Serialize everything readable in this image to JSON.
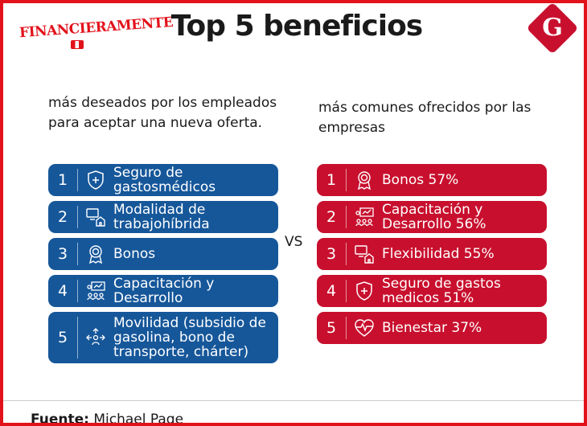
{
  "header": {
    "title": "Top 5 beneficios",
    "brand_left": "FINANCIERAMENTE",
    "brand_right": "G"
  },
  "left": {
    "subtitle": "más deseados por los empleados para aceptar una nueva oferta.",
    "items": [
      {
        "num": "1",
        "label": "Seguro de gastosmédicos",
        "icon": "shield-plus-icon"
      },
      {
        "num": "2",
        "label": "Modalidad de trabajohíbrida",
        "icon": "hybrid-work-icon"
      },
      {
        "num": "3",
        "label": "Bonos",
        "icon": "award-badge-icon"
      },
      {
        "num": "4",
        "label": "Capacitación y Desarrollo",
        "icon": "training-icon"
      },
      {
        "num": "5",
        "label": "Movilidad (subsidio de gasolina, bono de transporte, chárter)",
        "icon": "mobility-icon"
      }
    ]
  },
  "vs_label": "VS",
  "right": {
    "subtitle": "más comunes ofrecidos por las empresas",
    "items": [
      {
        "num": "1",
        "label": "Bonos 57%",
        "icon": "award-badge-icon"
      },
      {
        "num": "2",
        "label": "Capacitación y Desarrollo 56%",
        "icon": "training-icon"
      },
      {
        "num": "3",
        "label": "Flexibilidad 55%",
        "icon": "hybrid-work-icon"
      },
      {
        "num": "4",
        "label": "Seguro de gastos medicos 51%",
        "icon": "shield-plus-icon"
      },
      {
        "num": "5",
        "label": "Bienestar 37%",
        "icon": "heartbeat-icon"
      }
    ]
  },
  "footer": {
    "source_label": "Fuente:",
    "source_value": "Michael Page"
  },
  "colors": {
    "frame": "#e2121b",
    "left_box": "#16579a",
    "right_box": "#c8102e"
  }
}
